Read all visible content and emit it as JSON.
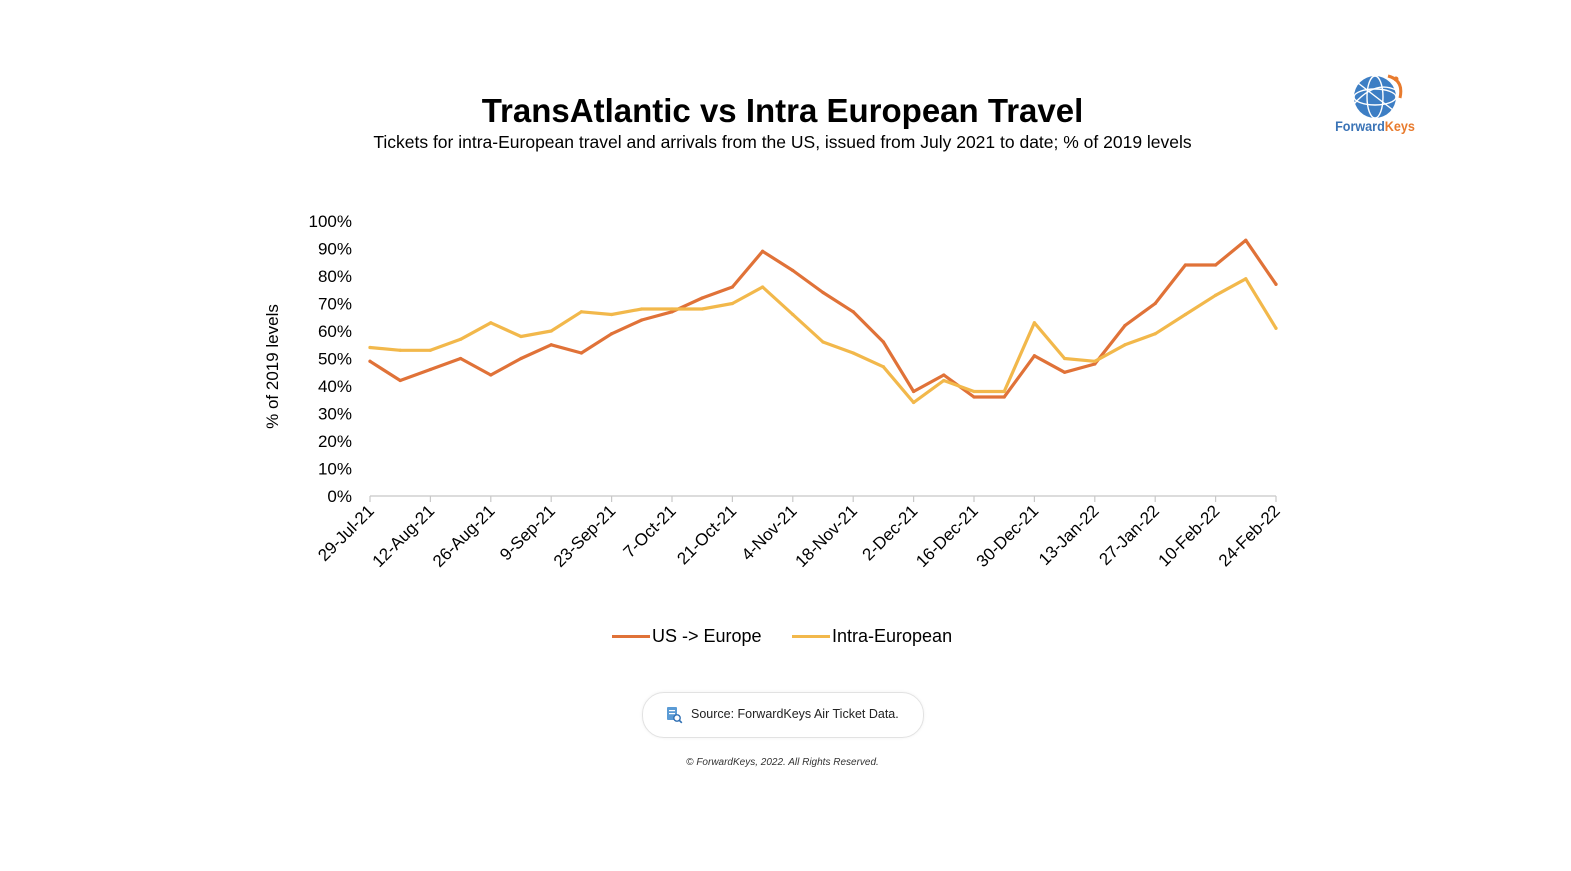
{
  "header": {
    "title": "TransAtlantic vs Intra European Travel",
    "subtitle": "Tickets for intra-European travel and arrivals from the US, issued from July 2021 to date; % of 2019 levels"
  },
  "logo": {
    "text_a": "Forward",
    "text_b": "Keys"
  },
  "footer": {
    "source": "Source: ForwardKeys Air Ticket Data.",
    "copyright": "© ForwardKeys, 2022. All Rights Reserved."
  },
  "chart_data": {
    "type": "line",
    "ylabel": "% of 2019 levels",
    "ylim": [
      0,
      100
    ],
    "yticks": [
      "0%",
      "10%",
      "20%",
      "30%",
      "40%",
      "50%",
      "60%",
      "70%",
      "80%",
      "90%",
      "100%"
    ],
    "x_tick_labels": [
      "29-Jul-21",
      "12-Aug-21",
      "26-Aug-21",
      "9-Sep-21",
      "23-Sep-21",
      "7-Oct-21",
      "21-Oct-21",
      "4-Nov-21",
      "18-Nov-21",
      "2-Dec-21",
      "16-Dec-21",
      "30-Dec-21",
      "13-Jan-22",
      "27-Jan-22",
      "10-Feb-22",
      "24-Feb-22"
    ],
    "x": [
      "29-Jul-21",
      "5-Aug-21",
      "12-Aug-21",
      "19-Aug-21",
      "26-Aug-21",
      "2-Sep-21",
      "9-Sep-21",
      "16-Sep-21",
      "23-Sep-21",
      "30-Sep-21",
      "7-Oct-21",
      "14-Oct-21",
      "21-Oct-21",
      "28-Oct-21",
      "4-Nov-21",
      "11-Nov-21",
      "18-Nov-21",
      "25-Nov-21",
      "2-Dec-21",
      "9-Dec-21",
      "16-Dec-21",
      "23-Dec-21",
      "30-Dec-21",
      "6-Jan-22",
      "13-Jan-22",
      "20-Jan-22",
      "27-Jan-22",
      "3-Feb-22",
      "10-Feb-22",
      "17-Feb-22",
      "24-Feb-22"
    ],
    "series": [
      {
        "name": "US -> Europe",
        "color": "#e07238",
        "values": [
          49,
          42,
          46,
          50,
          44,
          50,
          55,
          52,
          59,
          64,
          67,
          72,
          76,
          89,
          82,
          74,
          67,
          56,
          38,
          44,
          36,
          36,
          51,
          45,
          48,
          62,
          70,
          84,
          84,
          93,
          77
        ]
      },
      {
        "name": "Intra-European",
        "color": "#f2b84b",
        "values": [
          54,
          53,
          53,
          57,
          63,
          58,
          60,
          67,
          66,
          68,
          68,
          68,
          70,
          76,
          66,
          56,
          52,
          47,
          34,
          42,
          38,
          38,
          63,
          50,
          49,
          55,
          59,
          66,
          73,
          79,
          61
        ]
      }
    ],
    "grid": false,
    "legend": "bottom"
  }
}
